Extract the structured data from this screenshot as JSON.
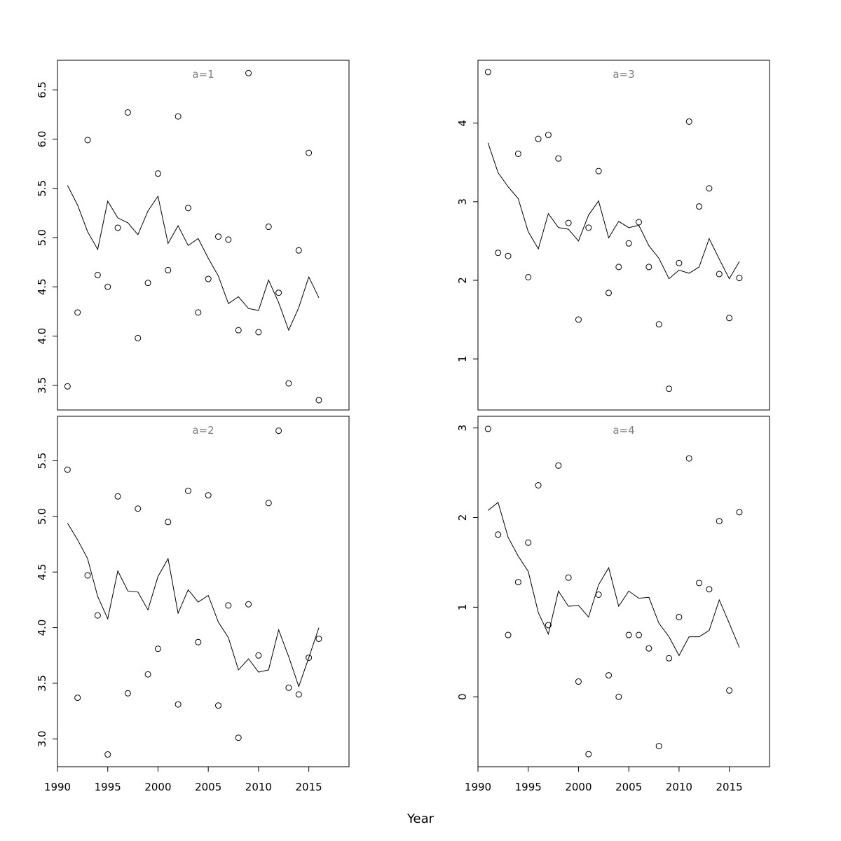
{
  "figure": {
    "xlabel": "Year"
  },
  "chart_data": [
    {
      "type": "scatter",
      "title": "a=1",
      "xlim": [
        1990,
        2019
      ],
      "ylim": [
        3.25,
        6.8
      ],
      "xticks": [],
      "xtick_labels": [],
      "yticks": [
        3.5,
        4.0,
        4.5,
        5.0,
        5.5,
        6.0,
        6.5
      ],
      "ytick_labels": [
        "3.5",
        "4.0",
        "4.5",
        "5.0",
        "5.5",
        "6.0",
        "6.5"
      ],
      "x": [
        1991,
        1992,
        1993,
        1994,
        1995,
        1996,
        1997,
        1998,
        1999,
        2000,
        2001,
        2002,
        2003,
        2004,
        2005,
        2006,
        2007,
        2008,
        2009,
        2010,
        2011,
        2012,
        2013,
        2014,
        2015,
        2016
      ],
      "points": [
        3.49,
        4.24,
        5.99,
        4.62,
        4.5,
        5.1,
        6.27,
        3.98,
        4.54,
        5.65,
        4.67,
        6.23,
        5.3,
        4.24,
        4.58,
        5.01,
        4.98,
        4.06,
        6.67,
        4.04,
        5.11,
        4.44,
        3.52,
        4.87,
        5.86,
        3.35
      ],
      "line": [
        5.53,
        5.33,
        5.06,
        4.88,
        5.37,
        5.2,
        5.15,
        5.03,
        5.27,
        5.42,
        4.94,
        5.12,
        4.92,
        4.99,
        4.79,
        4.61,
        4.33,
        4.4,
        4.28,
        4.26,
        4.57,
        4.34,
        4.06,
        4.29,
        4.6,
        4.39
      ]
    },
    {
      "type": "scatter",
      "title": "a=3",
      "xlim": [
        1990,
        2019
      ],
      "ylim": [
        0.35,
        4.8
      ],
      "xticks": [],
      "xtick_labels": [],
      "yticks": [
        1,
        2,
        3,
        4
      ],
      "ytick_labels": [
        "1",
        "2",
        "3",
        "4"
      ],
      "x": [
        1991,
        1992,
        1993,
        1994,
        1995,
        1996,
        1997,
        1998,
        1999,
        2000,
        2001,
        2002,
        2003,
        2004,
        2005,
        2006,
        2007,
        2008,
        2009,
        2010,
        2011,
        2012,
        2013,
        2014,
        2015,
        2016
      ],
      "points": [
        4.65,
        2.35,
        2.31,
        3.61,
        2.04,
        3.8,
        3.85,
        3.55,
        2.73,
        1.5,
        2.67,
        3.39,
        1.84,
        2.17,
        2.47,
        2.74,
        2.17,
        1.44,
        0.62,
        2.22,
        4.02,
        2.94,
        3.17,
        2.08,
        1.52,
        2.03
      ],
      "line": [
        3.75,
        3.37,
        3.19,
        3.04,
        2.62,
        2.4,
        2.85,
        2.67,
        2.65,
        2.5,
        2.83,
        3.01,
        2.54,
        2.75,
        2.67,
        2.7,
        2.44,
        2.28,
        2.02,
        2.13,
        2.09,
        2.17,
        2.53,
        2.27,
        2.02,
        2.24
      ]
    },
    {
      "type": "scatter",
      "title": "a=2",
      "xlim": [
        1990,
        2019
      ],
      "ylim": [
        2.75,
        5.9
      ],
      "xticks": [
        1990,
        1995,
        2000,
        2005,
        2010,
        2015
      ],
      "xtick_labels": [
        "1990",
        "1995",
        "2000",
        "2005",
        "2010",
        "2015"
      ],
      "yticks": [
        3.0,
        3.5,
        4.0,
        4.5,
        5.0,
        5.5
      ],
      "ytick_labels": [
        "3.0",
        "3.5",
        "4.0",
        "4.5",
        "5.0",
        "5.5"
      ],
      "x": [
        1991,
        1992,
        1993,
        1994,
        1995,
        1996,
        1997,
        1998,
        1999,
        2000,
        2001,
        2002,
        2003,
        2004,
        2005,
        2006,
        2007,
        2008,
        2009,
        2010,
        2011,
        2012,
        2013,
        2014,
        2015,
        2016
      ],
      "points": [
        5.42,
        3.37,
        4.47,
        4.11,
        2.86,
        5.18,
        3.41,
        5.07,
        3.58,
        3.81,
        4.95,
        3.31,
        5.23,
        3.87,
        5.19,
        3.3,
        4.2,
        3.01,
        4.21,
        3.75,
        5.12,
        5.77,
        3.46,
        3.4,
        3.73,
        3.9
      ],
      "line": [
        4.94,
        4.79,
        4.62,
        4.28,
        4.08,
        4.51,
        4.33,
        4.32,
        4.16,
        4.46,
        4.62,
        4.13,
        4.34,
        4.23,
        4.29,
        4.05,
        3.91,
        3.62,
        3.72,
        3.6,
        3.62,
        3.98,
        3.74,
        3.47,
        3.73,
        4.0
      ]
    },
    {
      "type": "scatter",
      "title": "a=4",
      "xlim": [
        1990,
        2019
      ],
      "ylim": [
        -0.78,
        3.13
      ],
      "xticks": [
        1990,
        1995,
        2000,
        2005,
        2010,
        2015
      ],
      "xtick_labels": [
        "1990",
        "1995",
        "2000",
        "2005",
        "2010",
        "2015"
      ],
      "yticks": [
        0,
        1,
        2,
        3
      ],
      "ytick_labels": [
        "0",
        "1",
        "2",
        "3"
      ],
      "x": [
        1991,
        1992,
        1993,
        1994,
        1995,
        1996,
        1997,
        1998,
        1999,
        2000,
        2001,
        2002,
        2003,
        2004,
        2005,
        2006,
        2007,
        2008,
        2009,
        2010,
        2011,
        2012,
        2013,
        2014,
        2015,
        2016
      ],
      "points": [
        2.99,
        1.81,
        0.69,
        1.28,
        1.72,
        2.36,
        0.8,
        2.58,
        1.33,
        0.17,
        -0.64,
        1.14,
        0.24,
        0.0,
        0.69,
        0.69,
        0.54,
        -0.55,
        0.43,
        0.89,
        2.66,
        1.27,
        1.2,
        1.96,
        0.07,
        2.06
      ],
      "line": [
        2.08,
        2.17,
        1.78,
        1.57,
        1.4,
        0.94,
        0.7,
        1.18,
        1.01,
        1.02,
        0.89,
        1.25,
        1.44,
        1.01,
        1.18,
        1.1,
        1.11,
        0.82,
        0.67,
        0.46,
        0.67,
        0.67,
        0.74,
        1.08,
        0.82,
        0.55
      ]
    }
  ]
}
